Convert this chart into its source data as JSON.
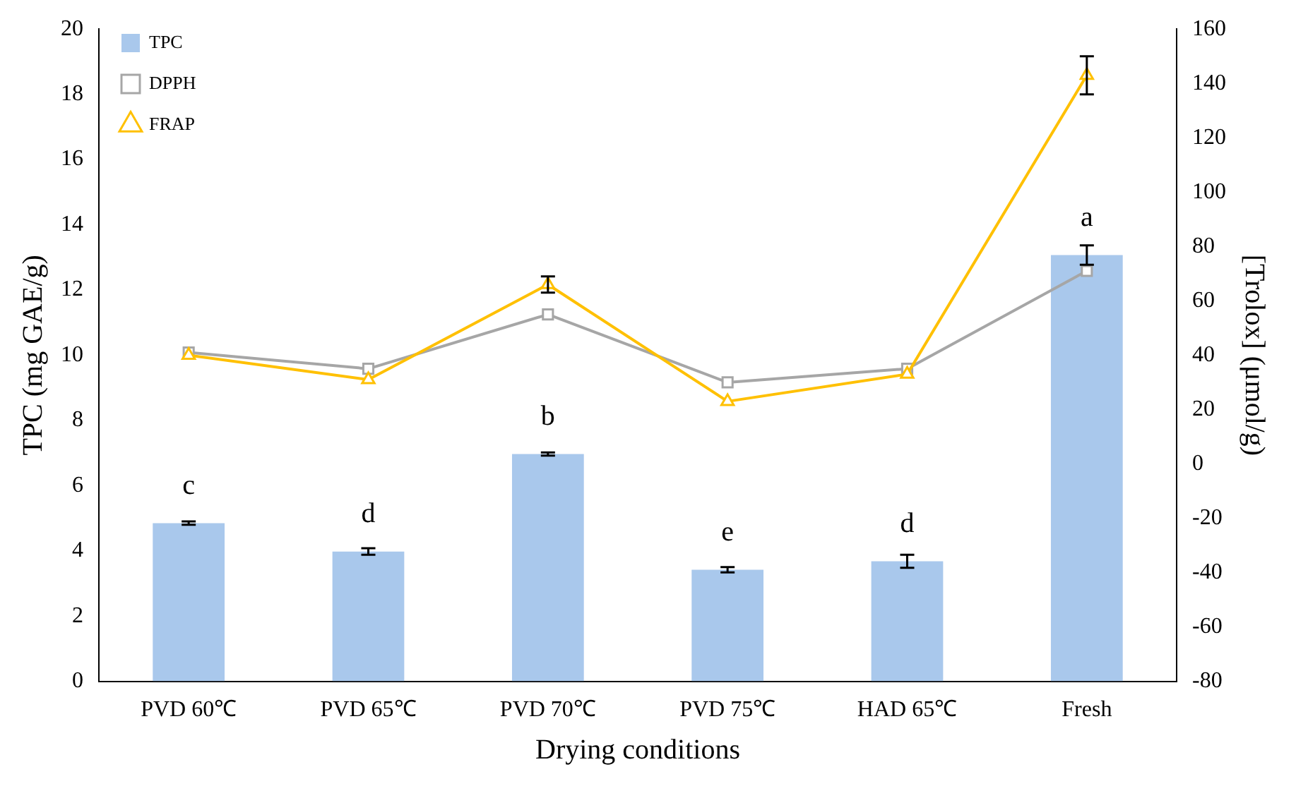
{
  "chart_data": {
    "type": "bar",
    "xlabel": "Drying conditions",
    "ylabel": "TPC (mg GAE/g)",
    "y2label": "[Trolox] (μmol/g)",
    "categories": [
      "PVD 60℃",
      "PVD 65℃",
      "PVD 70℃",
      "PVD 75℃",
      "HAD 65℃",
      "Fresh"
    ],
    "series": [
      {
        "name": "TPC",
        "color": "#a9c8ec",
        "values": [
          4.85,
          3.98,
          6.97,
          3.42,
          3.68,
          13.07
        ],
        "errors": [
          0.05,
          0.1,
          0.05,
          0.08,
          0.2,
          0.3
        ]
      },
      {
        "name": "DPPH",
        "type": "line",
        "axis": "y2",
        "color": "#a6a6a6",
        "marker": "square",
        "values": [
          41,
          35,
          55,
          30,
          35,
          71
        ]
      },
      {
        "name": "FRAP",
        "type": "line",
        "axis": "y2",
        "color": "#ffc000",
        "marker": "triangle",
        "values": [
          40,
          31,
          66,
          23,
          33,
          143
        ],
        "errors": [
          null,
          null,
          3,
          null,
          null,
          7
        ]
      }
    ],
    "ylim": [
      0,
      20
    ],
    "yticks": [
      0,
      2,
      4,
      6,
      8,
      10,
      12,
      14,
      16,
      18,
      20
    ],
    "y2lim": [
      -80,
      160
    ],
    "y2ticks": [
      -80,
      -60,
      -40,
      -20,
      0,
      20,
      40,
      60,
      80,
      100,
      120,
      140,
      160
    ],
    "annotations": [
      {
        "text": "c",
        "x": "PVD 60℃",
        "y": 4.85
      },
      {
        "text": "d",
        "x": "PVD 65℃",
        "y": 3.98
      },
      {
        "text": "b",
        "x": "PVD 70℃",
        "y": 6.97
      },
      {
        "text": "e",
        "x": "PVD 75℃",
        "y": 3.42
      },
      {
        "text": "d",
        "x": "HAD 65℃",
        "y": 3.68
      },
      {
        "text": "a",
        "x": "Fresh",
        "y": 13.07
      }
    ],
    "legend": "top left",
    "grid": false
  }
}
